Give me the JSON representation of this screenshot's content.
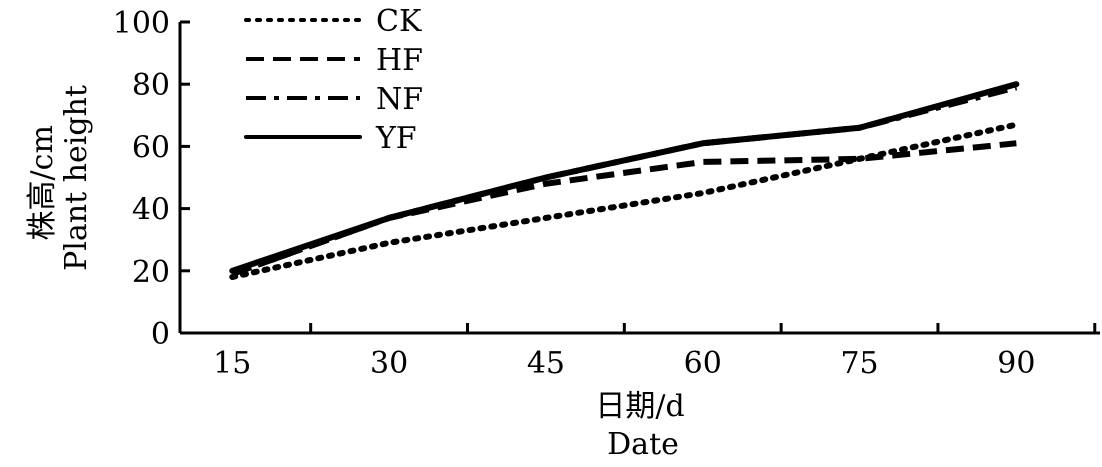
{
  "chart_data": {
    "type": "line",
    "title": "",
    "xlabel": [
      "日期/d",
      "Date"
    ],
    "ylabel": [
      "株高/cm",
      "Plant height"
    ],
    "x": [
      15,
      30,
      45,
      60,
      75,
      90
    ],
    "xlim": [
      10,
      98
    ],
    "ylim": [
      0,
      100
    ],
    "yticks": [
      0,
      20,
      40,
      60,
      80,
      100
    ],
    "legend_position": "top-left",
    "grid": false,
    "series": [
      {
        "name": "CK",
        "style": "dotted",
        "x": [
          15,
          30,
          45,
          60,
          75,
          90
        ],
        "values": [
          18,
          29,
          37,
          45,
          56,
          67
        ]
      },
      {
        "name": "HF",
        "style": "dashed",
        "x": [
          15,
          30,
          45,
          60,
          75,
          90
        ],
        "values": [
          19,
          37,
          48,
          55,
          56,
          61
        ]
      },
      {
        "name": "NF",
        "style": "dash-dot",
        "x": [
          15,
          30,
          45,
          60,
          75,
          90
        ],
        "values": [
          19,
          37,
          50,
          61,
          66,
          79
        ]
      },
      {
        "name": "YF",
        "style": "solid",
        "x": [
          15,
          30,
          45,
          60,
          75,
          90
        ],
        "values": [
          20,
          37,
          50,
          61,
          66,
          80
        ]
      }
    ]
  }
}
